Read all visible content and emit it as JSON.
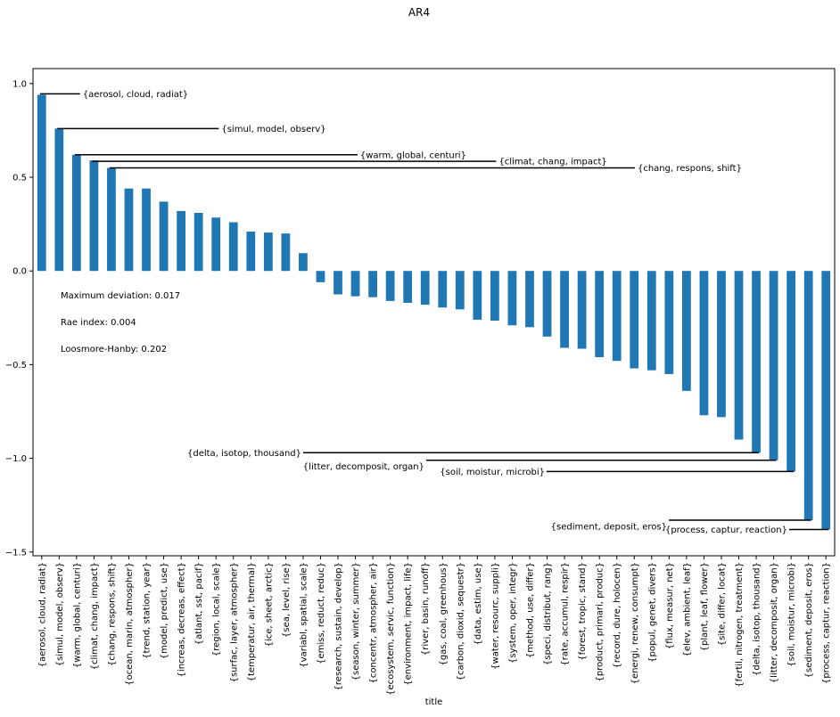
{
  "chart_data": {
    "type": "bar",
    "title": "AR4",
    "xlabel": "title",
    "ylabel": "",
    "ylim": [
      -1.52,
      1.08
    ],
    "yticks": [
      -1.5,
      -1.0,
      -0.5,
      0.0,
      0.5,
      1.0
    ],
    "ytick_labels": [
      "−1.5",
      "−1.0",
      "−0.5",
      "0.0",
      "0.5",
      "1.0"
    ],
    "bar_color": "#1f77b4",
    "grid": false,
    "categories": [
      "{aerosol, cloud, radiat}",
      "{simul, model, observ}",
      "{warm, global, centuri}",
      "{climat, chang, impact}",
      "{chang, respons, shift}",
      "{ocean, marin, atmospher}",
      "{trend, station, year}",
      "{model, predict, use}",
      "{increas, decreas, effect}",
      "{atlant, sst, pacif}",
      "{region, local, scale}",
      "{surfac, layer, atmospher}",
      "{temperatur, air, thermal}",
      "{ice, sheet, arctic}",
      "{sea, level, rise}",
      "{variabl, spatial, scale}",
      "{emiss, reduct, reduc}",
      "{research, sustain, develop}",
      "{season, winter, summer}",
      "{concentr, atmospher, air}",
      "{ecosystem, servic, function}",
      "{environment, impact, life}",
      "{river, basin, runoff}",
      "{gas, coal, greenhous}",
      "{carbon, dioxid, sequestr}",
      "{data, estim, use}",
      "{water, resourc, suppli}",
      "{system, oper, integr}",
      "{method, use, differ}",
      "{speci, distribut, rang}",
      "{rate, accumul, respir}",
      "{forest, tropic, stand}",
      "{product, primari, produc}",
      "{record, dure, holocen}",
      "{energi, renew, consumpt}",
      "{popul, genet, divers}",
      "{flux, measur, net}",
      "{elev, ambient, leaf}",
      "{plant, leaf, flower}",
      "{site, differ, locat}",
      "{fertil, nitrogen, treatment}",
      "{delta, isotop, thousand}",
      "{litter, decomposit, organ}",
      "{soil, moistur, microbi}",
      "{sediment, deposit, eros}",
      "{process, captur, reaction}"
    ],
    "values": [
      0.94,
      0.76,
      0.62,
      0.59,
      0.55,
      0.44,
      0.44,
      0.37,
      0.32,
      0.31,
      0.285,
      0.26,
      0.21,
      0.205,
      0.2,
      0.095,
      -0.06,
      -0.125,
      -0.135,
      -0.14,
      -0.16,
      -0.17,
      -0.18,
      -0.195,
      -0.205,
      -0.26,
      -0.265,
      -0.29,
      -0.3,
      -0.35,
      -0.41,
      -0.415,
      -0.46,
      -0.48,
      -0.52,
      -0.53,
      -0.55,
      -0.64,
      -0.77,
      -0.78,
      -0.9,
      -0.97,
      -1.01,
      -1.07,
      -1.33,
      -1.38
    ],
    "annotations_top": [
      {
        "text": "{aerosol, cloud, radiat}",
        "y": 0.945,
        "bar_index": 0
      },
      {
        "text": "{simul, model, observ}",
        "y": 0.76,
        "bar_index": 1
      },
      {
        "text": "{warm, global, centuri}",
        "y": 0.62,
        "bar_index": 2
      },
      {
        "text": "{climat, chang, impact}",
        "y": 0.585,
        "bar_index": 3
      },
      {
        "text": "{chang, respons, shift}",
        "y": 0.55,
        "bar_index": 4
      }
    ],
    "annotations_bottom": [
      {
        "text": "{delta, isotop, thousand}",
        "y": -0.97,
        "bar_index": 41
      },
      {
        "text": "{litter, decomposit, organ}",
        "y": -1.01,
        "bar_index": 42
      },
      {
        "text": "{soil, moistur, microbi}",
        "y": -1.07,
        "bar_index": 43
      },
      {
        "text": "{sediment, deposit, eros}",
        "y": -1.33,
        "bar_index": 44
      },
      {
        "text": "{process, captur, reaction}",
        "y": -1.38,
        "bar_index": 45
      }
    ],
    "stats": [
      "Maximum deviation: 0.017",
      "Rae index: 0.004",
      "Loosmore-Hanby: 0.202"
    ]
  }
}
